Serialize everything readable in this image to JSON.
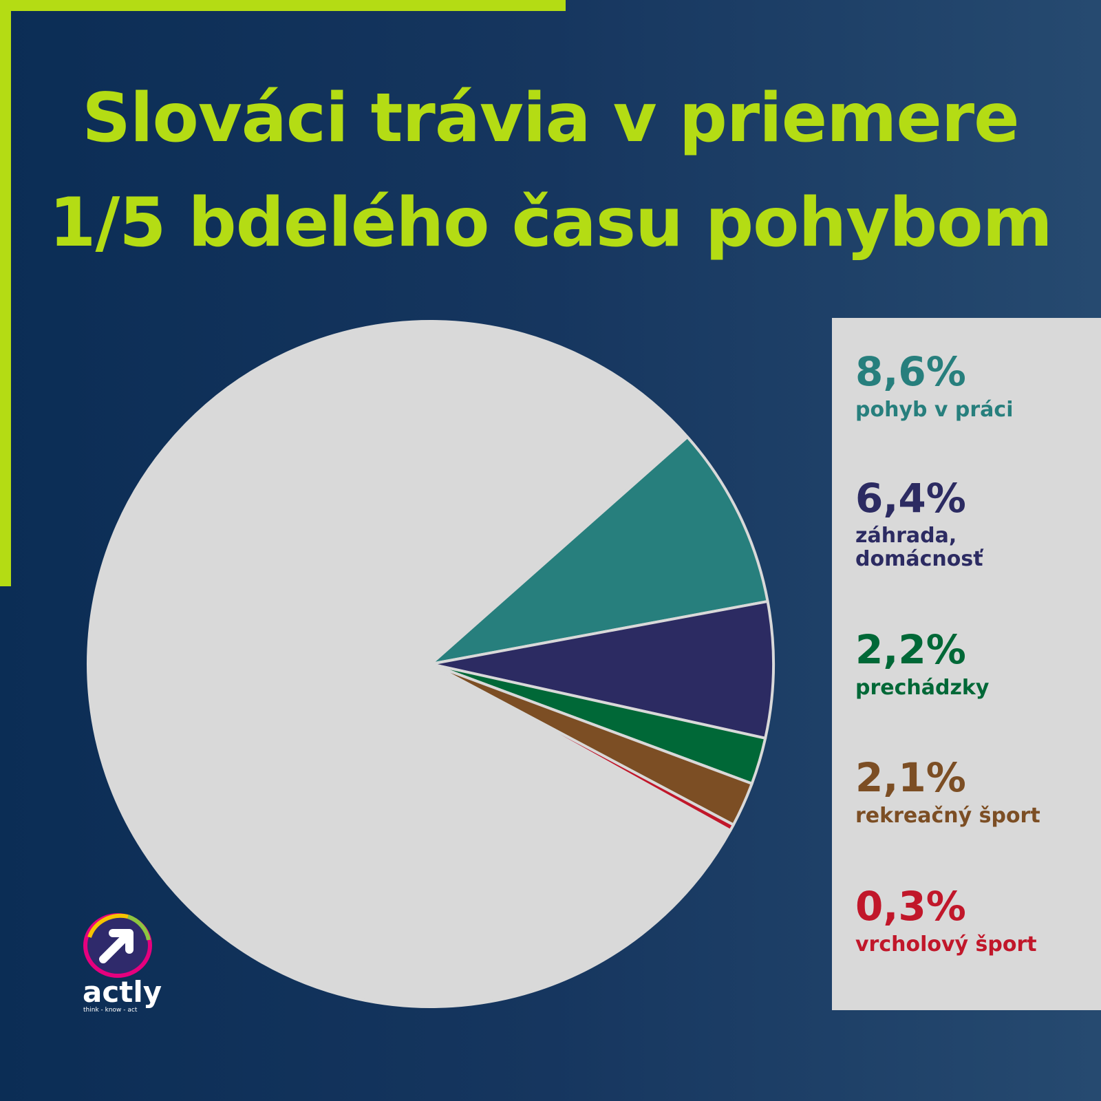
{
  "title": {
    "line1": "Slováci trávia v priemere",
    "line2": "1/5 bdelého času pohybom"
  },
  "chart_data": {
    "type": "pie",
    "values": [
      80.4,
      8.6,
      6.4,
      2.2,
      2.1,
      0.3
    ],
    "colors": [
      "#d9d9d9",
      "#277f7d",
      "#2c2b62",
      "#006837",
      "#7c4e24",
      "#c1172a"
    ],
    "legend": [
      {
        "pct": "8,6%",
        "label": "pohyb v práci",
        "color": "#277f7d"
      },
      {
        "pct": "6,4%",
        "label": "záhrada,\ndomácnosť",
        "color": "#2c2b62"
      },
      {
        "pct": "2,2%",
        "label": "prechádzky",
        "color": "#006837"
      },
      {
        "pct": "2,1%",
        "label": "rekreačný šport",
        "color": "#7c4e24"
      },
      {
        "pct": "0,3%",
        "label": "vrcholový šport",
        "color": "#c1172a"
      }
    ],
    "legend_position": "right"
  },
  "logo": {
    "name": "actly",
    "tagline": "think - know - act"
  }
}
